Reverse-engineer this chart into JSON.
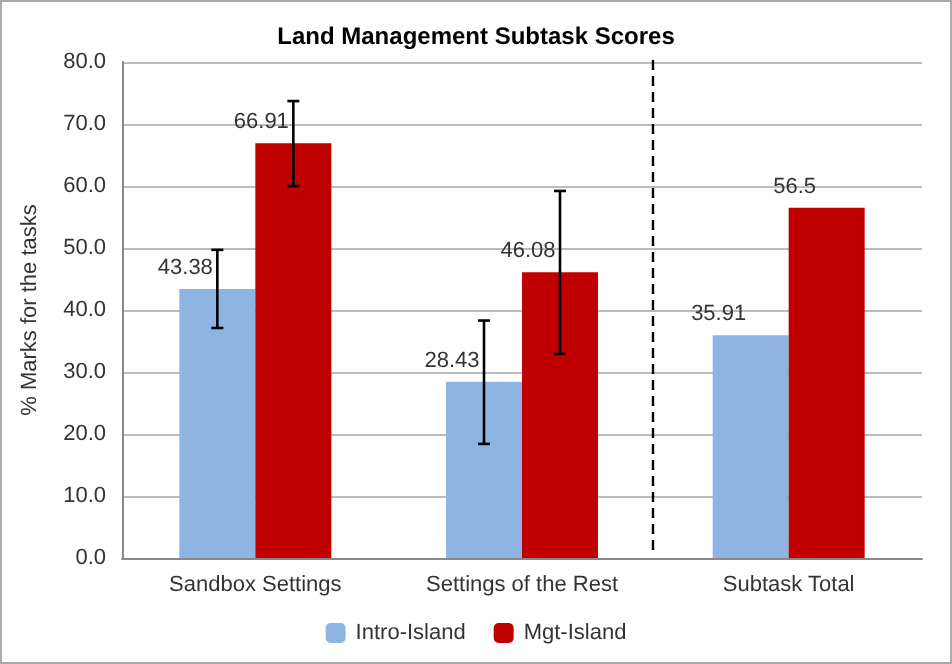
{
  "chart_data": {
    "type": "bar",
    "title": "Land Management Subtask Scores",
    "ylabel": "% Marks for the tasks",
    "categories": [
      "Sandbox Settings",
      "Settings of the Rest",
      "Subtask Total"
    ],
    "series": [
      {
        "name": "Intro-Island",
        "color": "#8eb4e3",
        "values": [
          43.38,
          28.43,
          35.91
        ],
        "errors": [
          [
            37.1,
            49.7
          ],
          [
            18.4,
            38.3
          ],
          null
        ]
      },
      {
        "name": "Mgt-Island",
        "color": "#c00000",
        "values": [
          66.91,
          46.08,
          56.5
        ],
        "errors": [
          [
            60,
            73.7
          ],
          [
            32.9,
            59.2
          ],
          null
        ]
      }
    ],
    "ylim": [
      0,
      80
    ],
    "yticks": [
      {
        "value": 0,
        "label": "0.0"
      },
      {
        "value": 10,
        "label": "10.0"
      },
      {
        "value": 20,
        "label": "20.0"
      },
      {
        "value": 30,
        "label": "30.0"
      },
      {
        "value": 40,
        "label": "40.0"
      },
      {
        "value": 50,
        "label": "50.0"
      },
      {
        "value": 60,
        "label": "60.0"
      },
      {
        "value": 70,
        "label": "70.0"
      },
      {
        "value": 80,
        "label": "80.0"
      }
    ],
    "data_labels": true,
    "grid": "y",
    "legend": "bottom"
  }
}
